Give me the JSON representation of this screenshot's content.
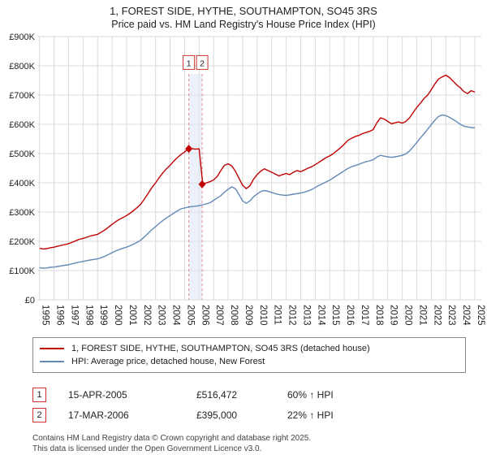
{
  "header": {
    "title": "1, FOREST SIDE, HYTHE, SOUTHAMPTON, SO45 3RS",
    "subtitle": "Price paid vs. HM Land Registry's House Price Index (HPI)"
  },
  "chart_data": {
    "type": "line",
    "title": "Price paid vs. HM Land Registry's House Price Index (HPI)",
    "unit": "GBP thousands",
    "x_start": 1995,
    "x_step": 0.25,
    "xlim": [
      1994.85,
      2025.45
    ],
    "ylim": [
      0,
      900
    ],
    "grid": true,
    "legend_position": "bottom",
    "y_tick_labels": [
      "£0",
      "£100K",
      "£200K",
      "£300K",
      "£400K",
      "£500K",
      "£600K",
      "£700K",
      "£800K",
      "£900K"
    ],
    "x_tick_years": [
      1995,
      1996,
      1997,
      1998,
      1999,
      2000,
      2001,
      2002,
      2003,
      2004,
      2005,
      2006,
      2007,
      2008,
      2009,
      2010,
      2011,
      2012,
      2013,
      2014,
      2015,
      2016,
      2017,
      2018,
      2019,
      2020,
      2021,
      2022,
      2023,
      2024,
      2025
    ],
    "series": [
      {
        "name": "1, FOREST SIDE, HYTHE, SOUTHAMPTON, SO45 3RS (detached house)",
        "color": "#c00000",
        "values": [
          176,
          174,
          175,
          178,
          180,
          183,
          186,
          189,
          192,
          197,
          202,
          207,
          210,
          214,
          218,
          221,
          224,
          231,
          239,
          248,
          258,
          267,
          275,
          281,
          288,
          296,
          306,
          316,
          328,
          346,
          365,
          384,
          400,
          418,
          434,
          448,
          460,
          474,
          486,
          497,
          505,
          516,
          517,
          515,
          516,
          395,
          400,
          404,
          410,
          422,
          442,
          460,
          465,
          458,
          440,
          415,
          392,
          380,
          390,
          412,
          428,
          440,
          448,
          442,
          436,
          430,
          424,
          428,
          432,
          428,
          436,
          442,
          438,
          444,
          450,
          455,
          462,
          470,
          478,
          486,
          492,
          500,
          510,
          520,
          532,
          545,
          552,
          558,
          562,
          568,
          572,
          576,
          582,
          605,
          622,
          618,
          610,
          602,
          605,
          608,
          604,
          610,
          622,
          640,
          658,
          672,
          688,
          700,
          718,
          738,
          755,
          762,
          768,
          760,
          748,
          735,
          725,
          712,
          705,
          715,
          710
        ]
      },
      {
        "name": "HPI: Average price, detached house, New Forest",
        "color": "#6389b7",
        "values": [
          110,
          108,
          109,
          111,
          112,
          114,
          116,
          118,
          120,
          123,
          126,
          129,
          131,
          134,
          136,
          138,
          140,
          144,
          149,
          155,
          161,
          167,
          172,
          176,
          180,
          185,
          191,
          197,
          205,
          216,
          228,
          240,
          250,
          261,
          271,
          280,
          288,
          296,
          304,
          311,
          314,
          317,
          319,
          320,
          322,
          325,
          328,
          332,
          340,
          348,
          356,
          368,
          378,
          386,
          380,
          360,
          338,
          330,
          338,
          352,
          362,
          370,
          374,
          371,
          367,
          363,
          360,
          358,
          357,
          359,
          361,
          363,
          365,
          368,
          372,
          377,
          384,
          391,
          397,
          403,
          409,
          417,
          425,
          433,
          441,
          449,
          455,
          459,
          463,
          468,
          472,
          475,
          479,
          488,
          494,
          491,
          489,
          487,
          489,
          491,
          494,
          499,
          509,
          523,
          538,
          553,
          568,
          583,
          599,
          614,
          627,
          632,
          630,
          624,
          617,
          609,
          600,
          594,
          591,
          589,
          588
        ]
      }
    ],
    "sale_markers": [
      {
        "label": "1",
        "x": 2005.29,
        "y": 516.472
      },
      {
        "label": "2",
        "x": 2006.21,
        "y": 395
      }
    ]
  },
  "transactions": [
    {
      "num": "1",
      "date": "15-APR-2005",
      "price": "£516,472",
      "hpi": "60% ↑ HPI"
    },
    {
      "num": "2",
      "date": "17-MAR-2006",
      "price": "£395,000",
      "hpi": "22% ↑ HPI"
    }
  ],
  "footer": {
    "line1": "Contains HM Land Registry data © Crown copyright and database right 2025.",
    "line2": "This data is licensed under the Open Government Licence v3.0."
  }
}
